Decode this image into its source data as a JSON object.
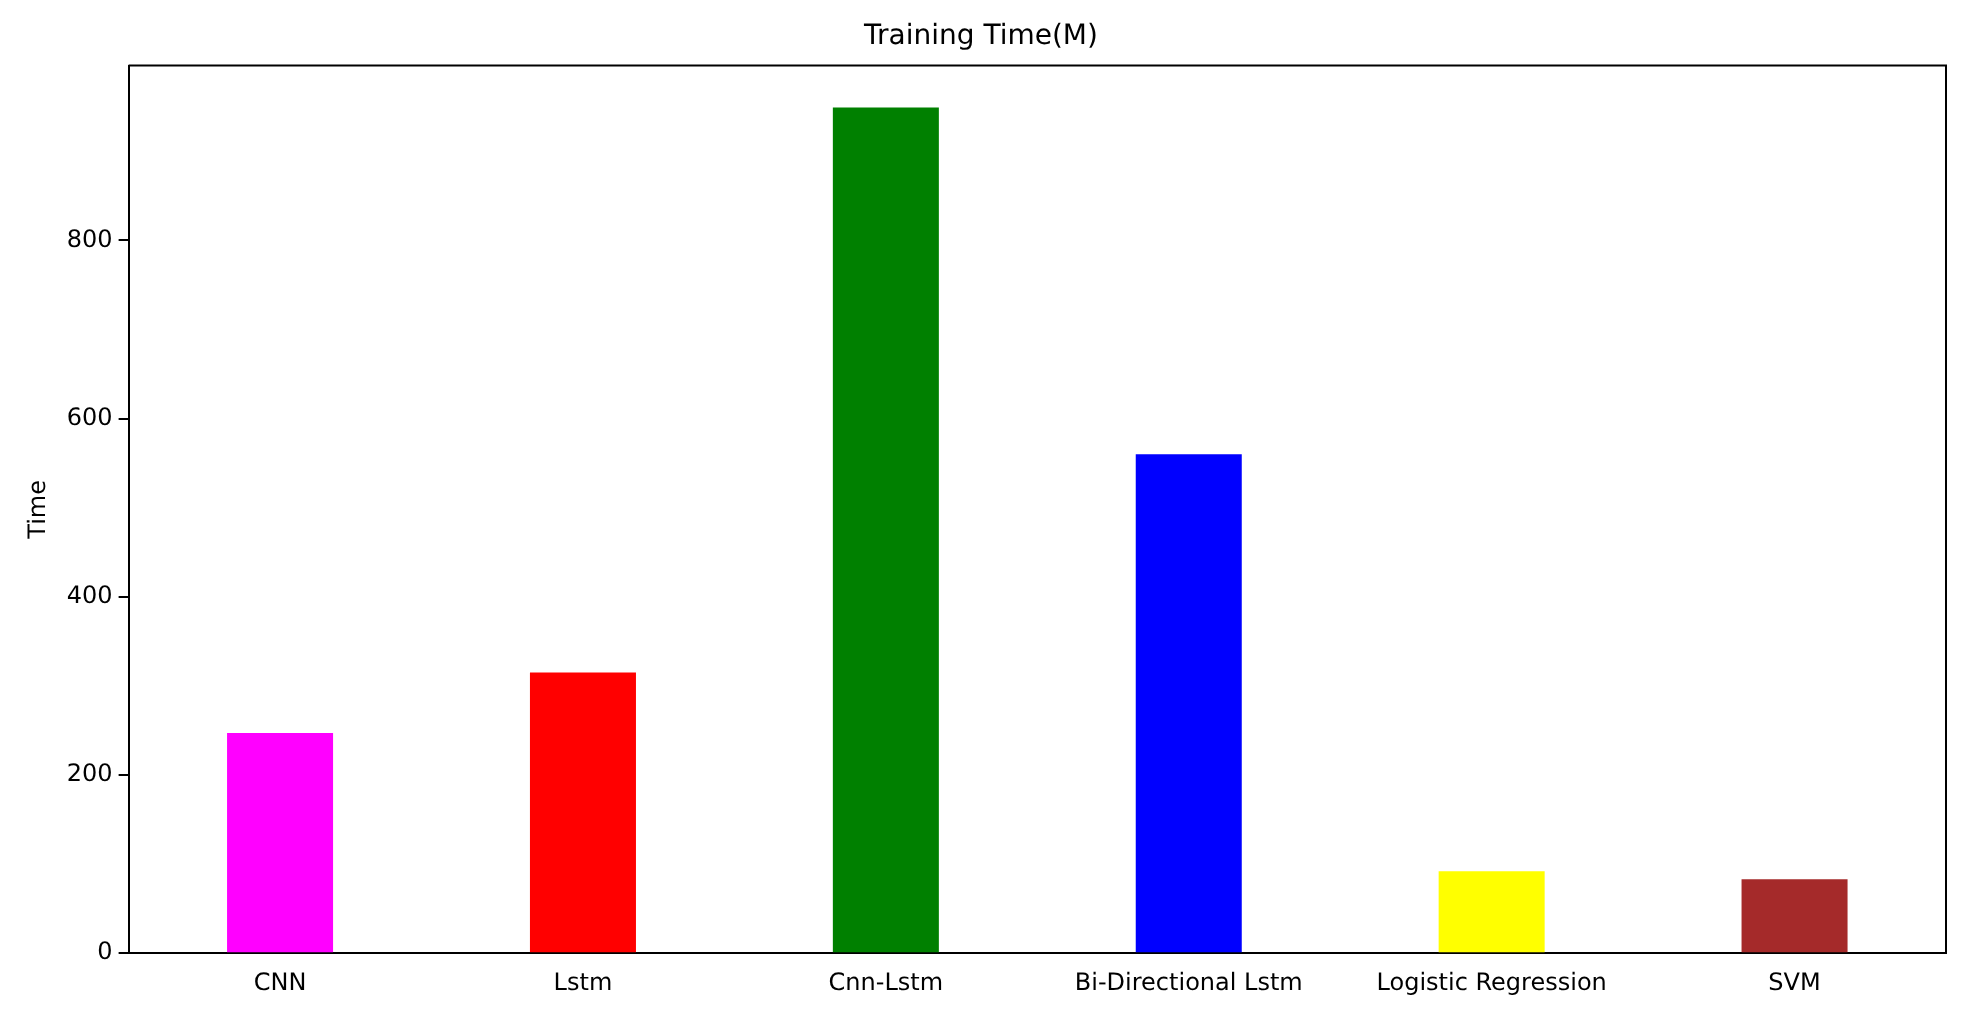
{
  "chart_data": {
    "type": "bar",
    "title": "Training Time(M)",
    "ylabel": "Time",
    "categories": [
      "CNN",
      "Lstm",
      "Cnn-Lstm",
      "Bi-Directional Lstm",
      "Logistic Regression",
      "SVM"
    ],
    "values": [
      247,
      315,
      949,
      560,
      92,
      83
    ],
    "colors": [
      "#ff00ff",
      "#ff0000",
      "#008000",
      "#0000ff",
      "#ffff00",
      "#a52a2a"
    ],
    "ylim": [
      0,
      996
    ],
    "yticks": [
      0,
      200,
      400,
      600,
      800
    ],
    "grid": false,
    "legend": false
  }
}
